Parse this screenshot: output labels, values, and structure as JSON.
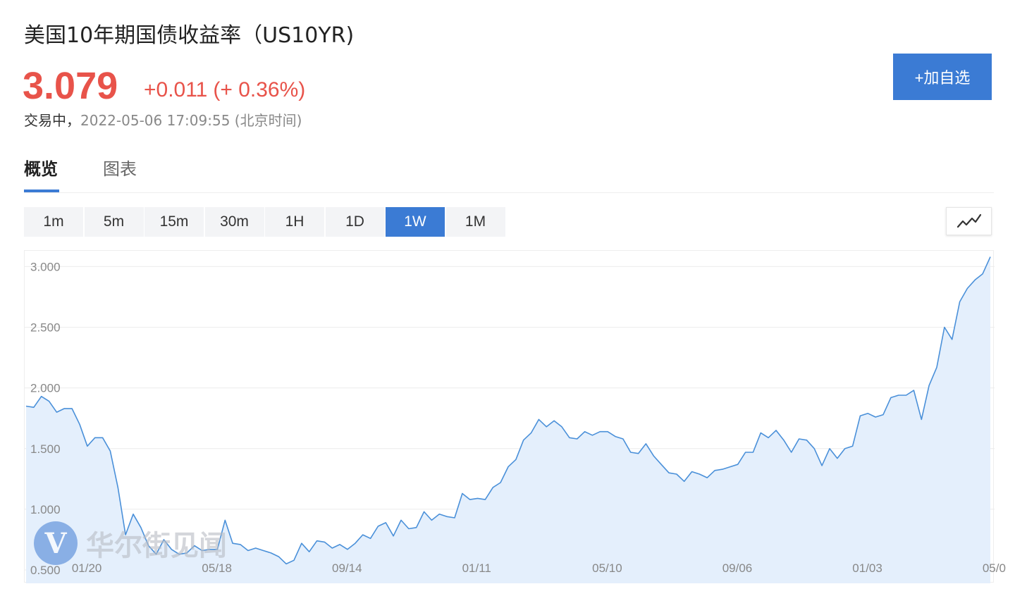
{
  "header": {
    "title": "美国10年期国债收益率（US10YR)",
    "price": "3.079",
    "change": "+0.011",
    "change_pct": "(+ 0.36%)",
    "status": "交易中，",
    "timestamp": "2022-05-06 17:09:55 (北京时间)",
    "add_button": "+加自选"
  },
  "colors": {
    "up": "#e8534a",
    "accent": "#3b7bd4",
    "line": "#4a90d9",
    "area_fill": "#e4effc"
  },
  "tabs": [
    {
      "label": "概览",
      "active": true
    },
    {
      "label": "图表",
      "active": false
    }
  ],
  "periods": [
    {
      "label": "1m",
      "active": false
    },
    {
      "label": "5m",
      "active": false
    },
    {
      "label": "15m",
      "active": false
    },
    {
      "label": "30m",
      "active": false
    },
    {
      "label": "1H",
      "active": false
    },
    {
      "label": "1D",
      "active": false
    },
    {
      "label": "1W",
      "active": true
    },
    {
      "label": "1M",
      "active": false
    }
  ],
  "chart_type_icon": "line-chart-icon",
  "watermark": {
    "logo": "V",
    "text": "华尔街见闻"
  },
  "chart_data": {
    "type": "area",
    "title": "",
    "xlabel": "",
    "ylabel": "",
    "ylim": [
      0.39,
      3.13
    ],
    "y_ticks": [
      "3.000",
      "2.500",
      "2.000",
      "1.500",
      "1.000",
      "0.500"
    ],
    "y_tick_values": [
      3.0,
      2.5,
      2.0,
      1.5,
      1.0,
      0.5
    ],
    "x_tick_labels": [
      "01/20",
      "05/18",
      "09/14",
      "01/11",
      "05/10",
      "09/06",
      "01/03",
      "05/0"
    ],
    "x_tick_positions": [
      8,
      25,
      42,
      59,
      76,
      93,
      110,
      127
    ],
    "grid": true,
    "series": [
      {
        "values": [
          1.85,
          1.84,
          1.93,
          1.89,
          1.8,
          1.83,
          1.83,
          1.7,
          1.52,
          1.59,
          1.59,
          1.48,
          1.18,
          0.79,
          0.96,
          0.85,
          0.7,
          0.63,
          0.75,
          0.67,
          0.63,
          0.64,
          0.7,
          0.66,
          0.67,
          0.67,
          0.91,
          0.72,
          0.71,
          0.66,
          0.68,
          0.66,
          0.64,
          0.61,
          0.55,
          0.58,
          0.72,
          0.65,
          0.74,
          0.73,
          0.68,
          0.71,
          0.67,
          0.72,
          0.79,
          0.76,
          0.86,
          0.89,
          0.78,
          0.91,
          0.84,
          0.85,
          0.98,
          0.91,
          0.96,
          0.94,
          0.93,
          1.13,
          1.08,
          1.09,
          1.08,
          1.18,
          1.22,
          1.35,
          1.41,
          1.57,
          1.63,
          1.74,
          1.68,
          1.73,
          1.68,
          1.59,
          1.58,
          1.64,
          1.61,
          1.64,
          1.64,
          1.6,
          1.58,
          1.47,
          1.46,
          1.54,
          1.44,
          1.37,
          1.3,
          1.29,
          1.23,
          1.31,
          1.29,
          1.26,
          1.32,
          1.33,
          1.35,
          1.37,
          1.47,
          1.47,
          1.63,
          1.59,
          1.65,
          1.57,
          1.47,
          1.58,
          1.57,
          1.5,
          1.36,
          1.5,
          1.42,
          1.5,
          1.52,
          1.77,
          1.79,
          1.76,
          1.78,
          1.92,
          1.94,
          1.94,
          1.98,
          1.74,
          2.02,
          2.17,
          2.5,
          2.4,
          2.71,
          2.82,
          2.89,
          2.94,
          3.08
        ]
      }
    ]
  }
}
